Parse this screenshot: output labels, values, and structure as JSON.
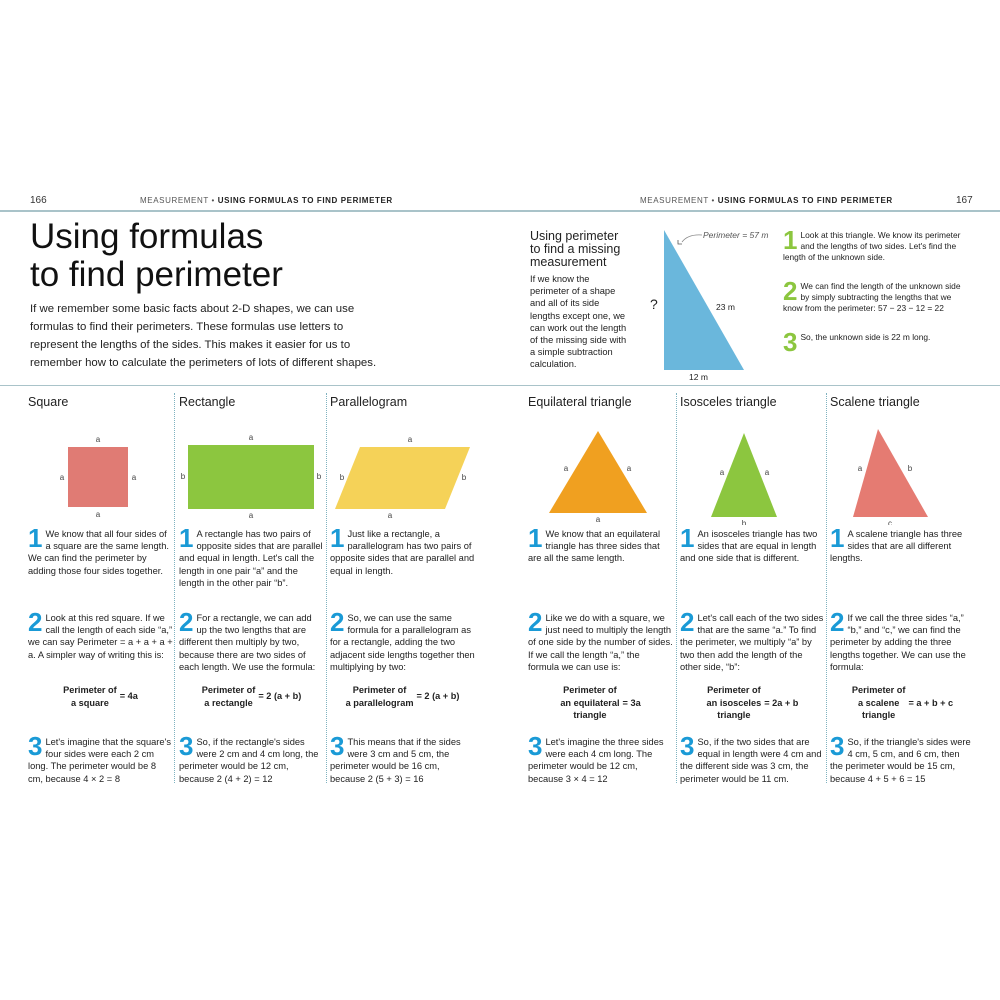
{
  "header": {
    "left_page": "166",
    "right_page": "167",
    "section": "MEASUREMENT",
    "dot": "•",
    "topic": "USING FORMULAS TO FIND PERIMETER"
  },
  "title": [
    "Using formulas",
    "to find perimeter"
  ],
  "intro": "If we remember some basic facts about 2-D shapes, we can use formulas to find their perimeters. These formulas use letters to represent the lengths of the sides. This makes it easier for us to remember how to calculate the perimeters of lots of different shapes.",
  "missing": {
    "title": [
      "Using perimeter",
      "to find a missing",
      "measurement"
    ],
    "text": "If we know the perimeter of a shape and all of its side lengths except one, we can work out the length of the missing side with a simple subtraction calculation.",
    "perimeter_label": "Perimeter = 57 m",
    "unknown": "?",
    "hyp": "23 m",
    "base": "12 m",
    "color": "#6ab7dc",
    "steps": [
      {
        "n": "1",
        "text": "Look at this triangle. We know its perimeter and the lengths of two sides. Let's find the length of the unknown side."
      },
      {
        "n": "2",
        "text": "We can find the length of the unknown side by simply subtracting the lengths that we know from the perimeter: 57 − 23 − 12 = 22"
      },
      {
        "n": "3",
        "text": "So, the unknown side is 22 m long."
      }
    ]
  },
  "colors": {
    "accent_blue": "#1a9ad6",
    "accent_green": "#8cc63f",
    "rule": "#a9c3c9"
  },
  "columns": [
    {
      "heading": "Square",
      "shape": "square",
      "color": "#e07b74",
      "labels": [
        "a",
        "a",
        "a",
        "a"
      ],
      "steps": [
        "We know that all four sides of a square are the same length. We can find the perimeter by adding those four sides together.",
        "Look at this red square. If we call the length of each side “a,” we can say Perimeter = a + a + a + a. A simpler way of writing this is:",
        "Let's imagine that the square's four sides were each 2 cm long. The perimeter would be 8 cm, because 4 × 2 = 8"
      ],
      "formula_label": [
        "Perimeter of",
        "a square"
      ],
      "formula_rhs": "= 4a"
    },
    {
      "heading": "Rectangle",
      "shape": "rectangle",
      "color": "#8cc63f",
      "labels": [
        "a",
        "b",
        "b",
        "a"
      ],
      "steps": [
        "A rectangle has two pairs of opposite sides that are parallel and equal in length. Let's call the length in one pair “a” and the length in the other pair “b”.",
        "For a rectangle, we can add up the two lengths that are different then multiply by two, because there are two sides of each length. We use the formula:",
        "So, if the rectangle's sides were 2 cm and 4 cm long, the perimeter would be 12 cm, because 2 (4 + 2) = 12"
      ],
      "formula_label": [
        "Perimeter of",
        "a rectangle"
      ],
      "formula_rhs": "= 2 (a + b)"
    },
    {
      "heading": "Parallelogram",
      "shape": "parallelogram",
      "color": "#f5d258",
      "labels": [
        "a",
        "b",
        "b",
        "a"
      ],
      "steps": [
        "Just like a rectangle, a parallelogram has two pairs of opposite sides that are parallel and equal in length.",
        "So, we can use the same formula for a parallelogram as for a rectangle, adding the two adjacent side lengths together then multiplying by two:",
        "This means that if the sides were 3 cm and 5 cm, the perimeter would be 16 cm, because 2 (5 + 3) = 16"
      ],
      "formula_label": [
        "Perimeter of",
        "a parallelogram"
      ],
      "formula_rhs": "= 2 (a + b)"
    },
    {
      "heading": "Equilateral triangle",
      "shape": "equilateral",
      "color": "#f0a020",
      "labels": [
        "a",
        "a",
        "a"
      ],
      "steps": [
        "We know that an equilateral triangle has three sides that are all the same length.",
        "Like we do with a square, we just need to multiply the length of one side by the number of sides. If we call the length “a,” the formula we can use is:",
        "Let's imagine the three sides were each 4 cm long. The perimeter would be 12 cm, because 3 × 4 = 12"
      ],
      "formula_label": [
        "Perimeter of",
        "an equilateral",
        "triangle"
      ],
      "formula_rhs": "= 3a"
    },
    {
      "heading": "Isosceles triangle",
      "shape": "isosceles",
      "color": "#8cc63f",
      "labels": [
        "a",
        "a",
        "b"
      ],
      "steps": [
        "An isosceles triangle has two sides that are equal in length and one side that is different.",
        "Let's call each of the two sides that are the same “a.” To find the perimeter, we multiply “a” by two then add the length of the other side, “b”:",
        "So, if the two sides that are equal in length were 4 cm and the different side was 3 cm, the perimeter would be 11 cm."
      ],
      "formula_label": [
        "Perimeter of",
        "an isosceles",
        "triangle"
      ],
      "formula_rhs": "= 2a + b"
    },
    {
      "heading": "Scalene triangle",
      "shape": "scalene",
      "color": "#e57b72",
      "labels": [
        "a",
        "b",
        "c"
      ],
      "steps": [
        "A scalene triangle has three sides that are all different lengths.",
        "If we call the three sides “a,” “b,” and “c,” we can find the perimeter by adding the three lengths together. We can use the formula:",
        "So, if the triangle's sides were 4 cm, 5 cm, and 6 cm, then the perimeter would be 15 cm, because 4 + 5 + 6 = 15"
      ],
      "formula_label": [
        "Perimeter of",
        "a scalene",
        "triangle"
      ],
      "formula_rhs": "= a + b + c"
    }
  ]
}
